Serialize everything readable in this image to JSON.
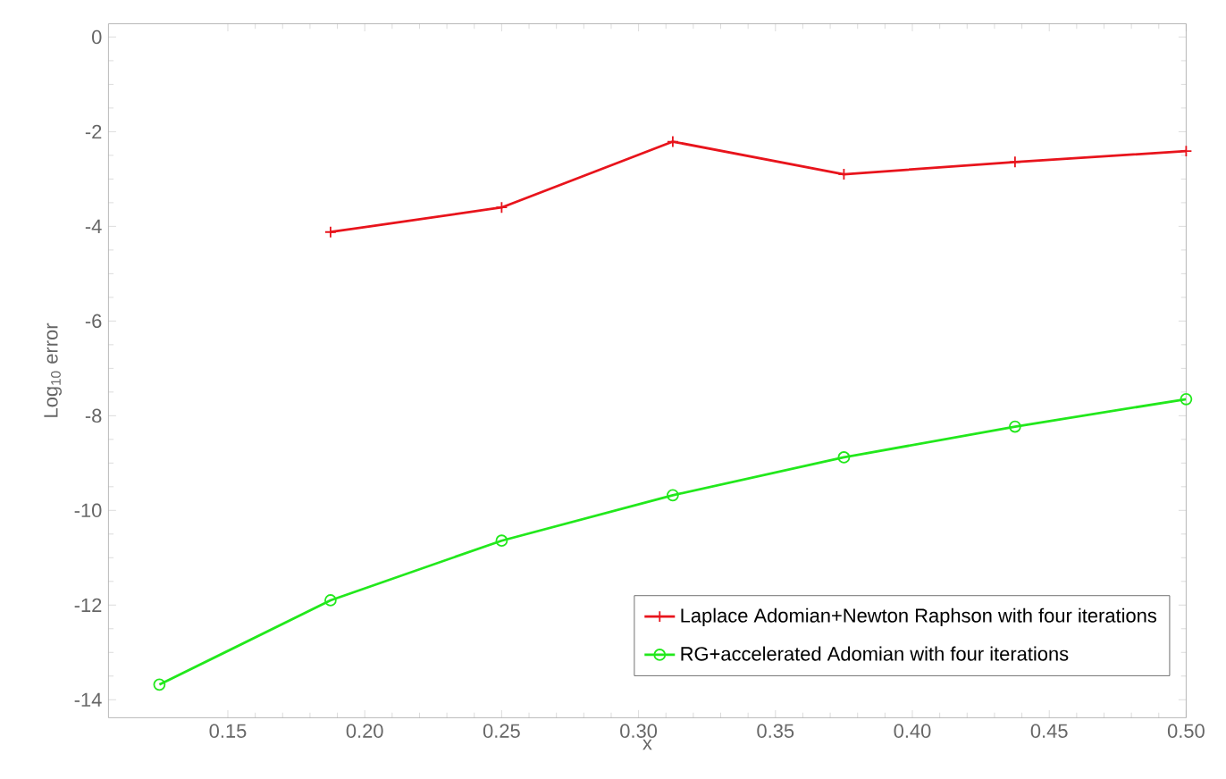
{
  "chart_data": {
    "type": "line",
    "xlabel": "x",
    "ylabel": "Log$_{10}$ error",
    "xlim": [
      0.1064,
      0.5
    ],
    "ylim": [
      -14.38,
      0.28
    ],
    "xticks": [
      {
        "value": 0.15,
        "label": "0.15"
      },
      {
        "value": 0.2,
        "label": "0.20"
      },
      {
        "value": 0.25,
        "label": "0.25"
      },
      {
        "value": 0.3,
        "label": "0.30"
      },
      {
        "value": 0.35,
        "label": "0.35"
      },
      {
        "value": 0.4,
        "label": "0.40"
      },
      {
        "value": 0.45,
        "label": "0.45"
      },
      {
        "value": 0.5,
        "label": "0.50"
      }
    ],
    "yticks": [
      0,
      -2,
      -4,
      -6,
      -8,
      -10,
      -12,
      -14
    ],
    "grid": false,
    "legend": "bottom right",
    "line_style": "solid",
    "series": [
      {
        "name": "Laplace Adomian+Newton Raphson with four iterations",
        "color": "#e8141c",
        "marker": "cross",
        "x": [
          0.1875,
          0.25,
          0.3125,
          0.375,
          0.4375,
          0.5
        ],
        "values": [
          -4.12,
          -3.6,
          -2.21,
          -2.9,
          -2.64,
          -2.41
        ]
      },
      {
        "name": "RG+accelerated Adomian with four iterations",
        "color": "#22e81c",
        "marker": "circle",
        "x": [
          0.125,
          0.1875,
          0.25,
          0.3125,
          0.375,
          0.4375,
          0.5
        ],
        "values": [
          -13.68,
          -11.9,
          -10.64,
          -9.68,
          -8.88,
          -8.23,
          -7.65
        ]
      }
    ]
  }
}
